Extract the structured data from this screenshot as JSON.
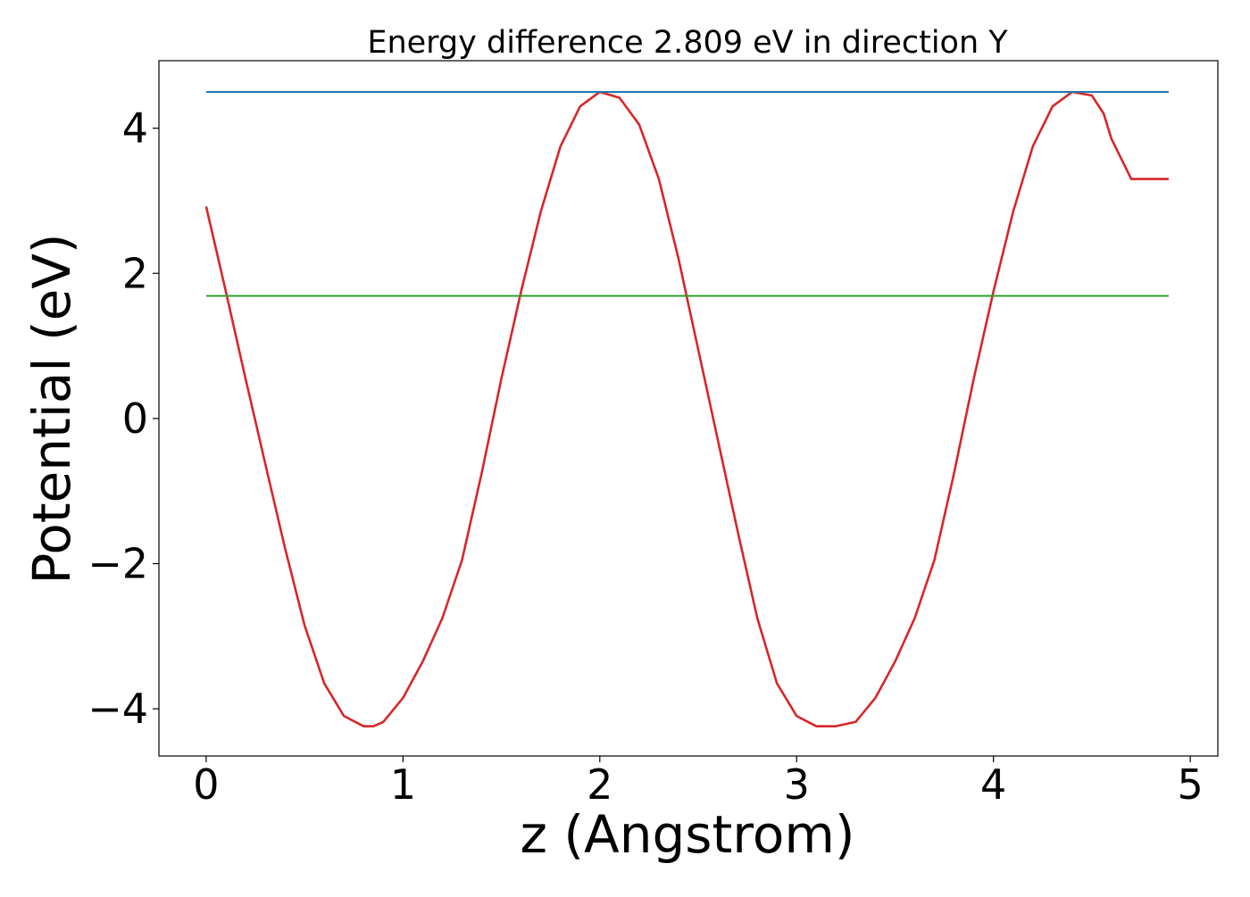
{
  "chart_data": {
    "type": "line",
    "title": "Energy difference 2.809 eV in direction Y",
    "xlabel": "z (Angstrom)",
    "ylabel": "Potential (eV)",
    "xlim": [
      -0.24,
      5.14
    ],
    "ylim": [
      -4.65,
      4.93
    ],
    "grid": false,
    "legend": "none",
    "x_ticks": [
      0,
      1,
      2,
      3,
      4,
      5
    ],
    "x_tick_labels": [
      "0",
      "1",
      "2",
      "3",
      "4",
      "5"
    ],
    "y_ticks": [
      -4,
      -2,
      0,
      2,
      4
    ],
    "y_tick_labels": [
      "−4",
      "−2",
      "0",
      "2",
      "4"
    ],
    "series": [
      {
        "color": "#d62728",
        "x": [
          0.0,
          0.1,
          0.2,
          0.3,
          0.4,
          0.5,
          0.6,
          0.7,
          0.8,
          0.85,
          0.9,
          1.0,
          1.1,
          1.2,
          1.3,
          1.4,
          1.5,
          1.6,
          1.7,
          1.8,
          1.9,
          2.0,
          2.1,
          2.2,
          2.3,
          2.4,
          2.5,
          2.6,
          2.7,
          2.8,
          2.9,
          3.0,
          3.1,
          3.2,
          3.3,
          3.4,
          3.5,
          3.6,
          3.7,
          3.8,
          3.9,
          4.0,
          4.1,
          4.2,
          4.3,
          4.4,
          4.5,
          4.56,
          4.6,
          4.7,
          4.8,
          4.89
        ],
        "y": [
          2.92,
          1.75,
          0.55,
          -0.62,
          -1.78,
          -2.85,
          -3.65,
          -4.1,
          -4.24,
          -4.24,
          -4.18,
          -3.85,
          -3.35,
          -2.75,
          -1.95,
          -0.75,
          0.55,
          1.75,
          2.85,
          3.75,
          4.3,
          4.5,
          4.42,
          4.05,
          3.3,
          2.2,
          0.95,
          -0.3,
          -1.55,
          -2.75,
          -3.65,
          -4.1,
          -4.24,
          -4.24,
          -4.18,
          -3.85,
          -3.35,
          -2.75,
          -1.95,
          -0.75,
          0.55,
          1.75,
          2.85,
          3.75,
          4.3,
          4.5,
          4.45,
          4.2,
          3.85,
          3.3,
          3.3,
          3.3
        ]
      },
      {
        "color": "#1f77b4",
        "x": [
          0.0,
          4.89
        ],
        "y": [
          4.5,
          4.5
        ]
      },
      {
        "color": "#2ca02c",
        "x": [
          0.0,
          4.89
        ],
        "y": [
          1.69,
          1.69
        ]
      }
    ]
  }
}
